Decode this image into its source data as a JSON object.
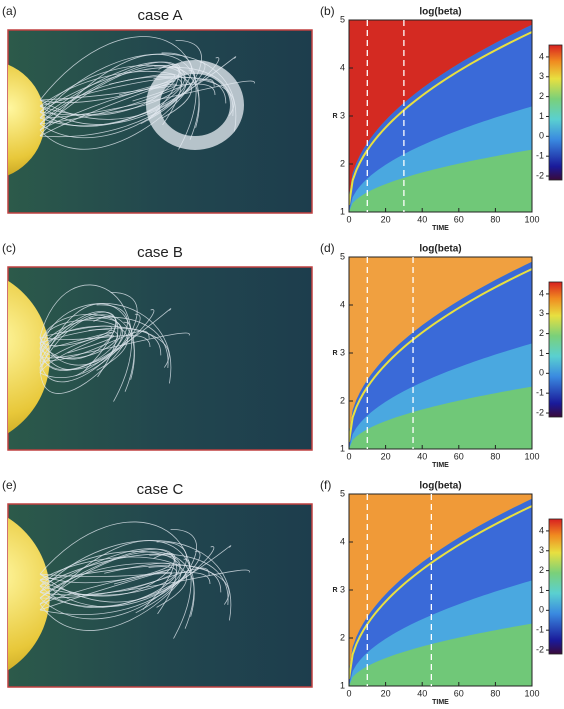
{
  "panels": [
    {
      "label": "(a)",
      "title": "case A"
    },
    {
      "label": "(c)",
      "title": "case B"
    },
    {
      "label": "(e)",
      "title": "case C"
    }
  ],
  "plots": [
    {
      "label": "(b)",
      "title": "log(beta)",
      "xlabel": "TIME",
      "ylabel": "R",
      "xlim": [
        0,
        100
      ],
      "xticks": [
        0,
        20,
        40,
        60,
        80,
        100
      ],
      "ylim": [
        1,
        5
      ],
      "yticks": [
        1,
        2,
        3,
        4,
        5
      ],
      "dashed_x": [
        10,
        30
      ],
      "clim": [
        -2.2,
        4.6
      ],
      "cticks": [
        -2,
        -1,
        0,
        1,
        2,
        3,
        4
      ]
    },
    {
      "label": "(d)",
      "title": "log(beta)",
      "xlabel": "TIME",
      "ylabel": "R",
      "xlim": [
        0,
        100
      ],
      "xticks": [
        0,
        20,
        40,
        60,
        80,
        100
      ],
      "ylim": [
        1,
        5
      ],
      "yticks": [
        1,
        2,
        3,
        4,
        5
      ],
      "dashed_x": [
        10,
        35
      ],
      "clim": [
        -2.2,
        4.6
      ],
      "cticks": [
        -2,
        -1,
        0,
        1,
        2,
        3,
        4
      ]
    },
    {
      "label": "(f)",
      "title": "log(beta)",
      "xlabel": "TIME",
      "ylabel": "R",
      "xlim": [
        0,
        100
      ],
      "xticks": [
        0,
        20,
        40,
        60,
        80,
        100
      ],
      "ylim": [
        1,
        5
      ],
      "yticks": [
        1,
        2,
        3,
        4,
        5
      ],
      "dashed_x": [
        10,
        45
      ],
      "clim": [
        -2.2,
        4.6
      ],
      "cticks": [
        -2,
        -1,
        0,
        1,
        2,
        3,
        4
      ]
    }
  ]
}
